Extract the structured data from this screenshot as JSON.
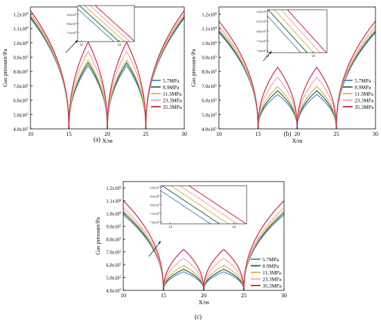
{
  "colors": [
    "#5a8fb4",
    "#1f6e5a",
    "#e3b94a",
    "#f0a8b0",
    "#c8324a"
  ],
  "legend": [
    "5.7MPa",
    "8.9MPa",
    "11.3MPa",
    "23.3MPa",
    "35.3MPa"
  ],
  "chart_data": [
    {
      "type": "line",
      "panel_label": "(a)",
      "xlabel": "X/m",
      "ylabel": "Gas pressure/Pa",
      "xlim": [
        10,
        30
      ],
      "ylim": [
        400000,
        1250000
      ],
      "xticks": [
        "10",
        "15",
        "20",
        "25",
        "30"
      ],
      "yticks": [
        {
          "value": 400000,
          "mant": "4.0x10",
          "exp": "5"
        },
        {
          "value": 500000,
          "mant": "5.0x10",
          "exp": "5"
        },
        {
          "value": 600000,
          "mant": "6.0x10",
          "exp": "5"
        },
        {
          "value": 700000,
          "mant": "7.0x10",
          "exp": "5"
        },
        {
          "value": 800000,
          "mant": "8.0x10",
          "exp": "5"
        },
        {
          "value": 900000,
          "mant": "9.0x10",
          "exp": "5"
        },
        {
          "value": 1000000,
          "mant": "1.0x10",
          "exp": "6"
        },
        {
          "value": 1100000,
          "mant": "1.1x10",
          "exp": "6"
        },
        {
          "value": 1200000,
          "mant": "1.2x10",
          "exp": "6"
        }
      ],
      "series": [
        {
          "name": "5.7MPa",
          "edge_max": 1170000,
          "mid_max": 840000
        },
        {
          "name": "8.9MPa",
          "edge_max": 1180000,
          "mid_max": 860000
        },
        {
          "name": "11.3MPa",
          "edge_max": 1190000,
          "mid_max": 880000
        },
        {
          "name": "23.3MPa",
          "edge_max": 1205000,
          "mid_max": 940000
        },
        {
          "name": "35.3MPa",
          "edge_max": 1225000,
          "mid_max": 1005000
        }
      ],
      "inset": {
        "xlim": [
          11.8,
          14.8
        ],
        "ylim": [
          700000,
          900000
        ],
        "xticks": [
          "12",
          "14"
        ],
        "yticks": [
          {
            "value": 750000,
            "mant": "7.5x10",
            "exp": "5"
          },
          {
            "value": 800000,
            "mant": "8.0x10",
            "exp": "5"
          },
          {
            "value": 850000,
            "mant": "8.5x10",
            "exp": "5"
          }
        ]
      }
    },
    {
      "type": "line",
      "panel_label": "(b)",
      "xlabel": "X/m",
      "ylabel": "Gas pressure/Pa",
      "xlim": [
        10,
        30
      ],
      "ylim": [
        400000,
        1250000
      ],
      "xticks": [
        "10",
        "15",
        "20",
        "25",
        "30"
      ],
      "yticks": [
        {
          "value": 400000,
          "mant": "4.0x10",
          "exp": "5"
        },
        {
          "value": 500000,
          "mant": "5.0x10",
          "exp": "5"
        },
        {
          "value": 600000,
          "mant": "6.0x10",
          "exp": "5"
        },
        {
          "value": 700000,
          "mant": "7.0x10",
          "exp": "5"
        },
        {
          "value": 800000,
          "mant": "8.0x10",
          "exp": "5"
        },
        {
          "value": 900000,
          "mant": "9.0x10",
          "exp": "5"
        },
        {
          "value": 1000000,
          "mant": "1.0x10",
          "exp": "6"
        },
        {
          "value": 1100000,
          "mant": "1.1x10",
          "exp": "6"
        },
        {
          "value": 1200000,
          "mant": "1.2x10",
          "exp": "6"
        }
      ],
      "series": [
        {
          "name": "5.7MPa",
          "edge_max": 1070000,
          "mid_max": 640000
        },
        {
          "name": "8.9MPa",
          "edge_max": 1080000,
          "mid_max": 665000
        },
        {
          "name": "11.3MPa",
          "edge_max": 1095000,
          "mid_max": 695000
        },
        {
          "name": "23.3MPa",
          "edge_max": 1115000,
          "mid_max": 760000
        },
        {
          "name": "35.3MPa",
          "edge_max": 1150000,
          "mid_max": 830000
        }
      ],
      "inset": {
        "xlim": [
          12.0,
          14.6
        ],
        "ylim": [
          690000,
          910000
        ],
        "xticks": [
          "12",
          "14"
        ],
        "yticks": [
          {
            "value": 700000,
            "mant": "7.0x10",
            "exp": "5"
          },
          {
            "value": 750000,
            "mant": "7.5x10",
            "exp": "5"
          },
          {
            "value": 800000,
            "mant": "8.0x10",
            "exp": "5"
          },
          {
            "value": 850000,
            "mant": "8.5x10",
            "exp": "5"
          },
          {
            "value": 900000,
            "mant": "9.0x10",
            "exp": "5"
          }
        ]
      }
    },
    {
      "type": "line",
      "panel_label": "(c)",
      "xlabel": "X/m",
      "ylabel": "Gas pressure/Pa",
      "xlim": [
        10,
        30
      ],
      "ylim": [
        400000,
        1250000
      ],
      "xticks": [
        "10",
        "15",
        "20",
        "25",
        "30"
      ],
      "yticks": [
        {
          "value": 400000,
          "mant": "4.0x10",
          "exp": "5"
        },
        {
          "value": 500000,
          "mant": "5.0x10",
          "exp": "5"
        },
        {
          "value": 600000,
          "mant": "6.0x10",
          "exp": "5"
        },
        {
          "value": 700000,
          "mant": "7.0x10",
          "exp": "5"
        },
        {
          "value": 800000,
          "mant": "8.0x10",
          "exp": "5"
        },
        {
          "value": 900000,
          "mant": "9.0x10",
          "exp": "5"
        },
        {
          "value": 1000000,
          "mant": "1.0x10",
          "exp": "6"
        },
        {
          "value": 1100000,
          "mant": "1.1x10",
          "exp": "6"
        },
        {
          "value": 1200000,
          "mant": "1.2x10",
          "exp": "6"
        }
      ],
      "series": [
        {
          "name": "5.7MPa",
          "edge_max": 990000,
          "mid_max": 545000
        },
        {
          "name": "8.9MPa",
          "edge_max": 1005000,
          "mid_max": 565000
        },
        {
          "name": "11.3MPa",
          "edge_max": 1020000,
          "mid_max": 595000
        },
        {
          "name": "23.3MPa",
          "edge_max": 1045000,
          "mid_max": 650000
        },
        {
          "name": "35.3MPa",
          "edge_max": 1100000,
          "mid_max": 720000
        }
      ],
      "inset": {
        "xlim": [
          11.7,
          14.4
        ],
        "ylim": [
          690000,
          910000
        ],
        "xticks": [
          "12",
          "14"
        ],
        "yticks": [
          {
            "value": 700000,
            "mant": "7.0x10",
            "exp": "5"
          },
          {
            "value": 750000,
            "mant": "7.5x10",
            "exp": "5"
          },
          {
            "value": 800000,
            "mant": "8.0x10",
            "exp": "5"
          },
          {
            "value": 850000,
            "mant": "8.5x10",
            "exp": "5"
          },
          {
            "value": 900000,
            "mant": "9.0x10",
            "exp": "5"
          }
        ]
      }
    }
  ]
}
